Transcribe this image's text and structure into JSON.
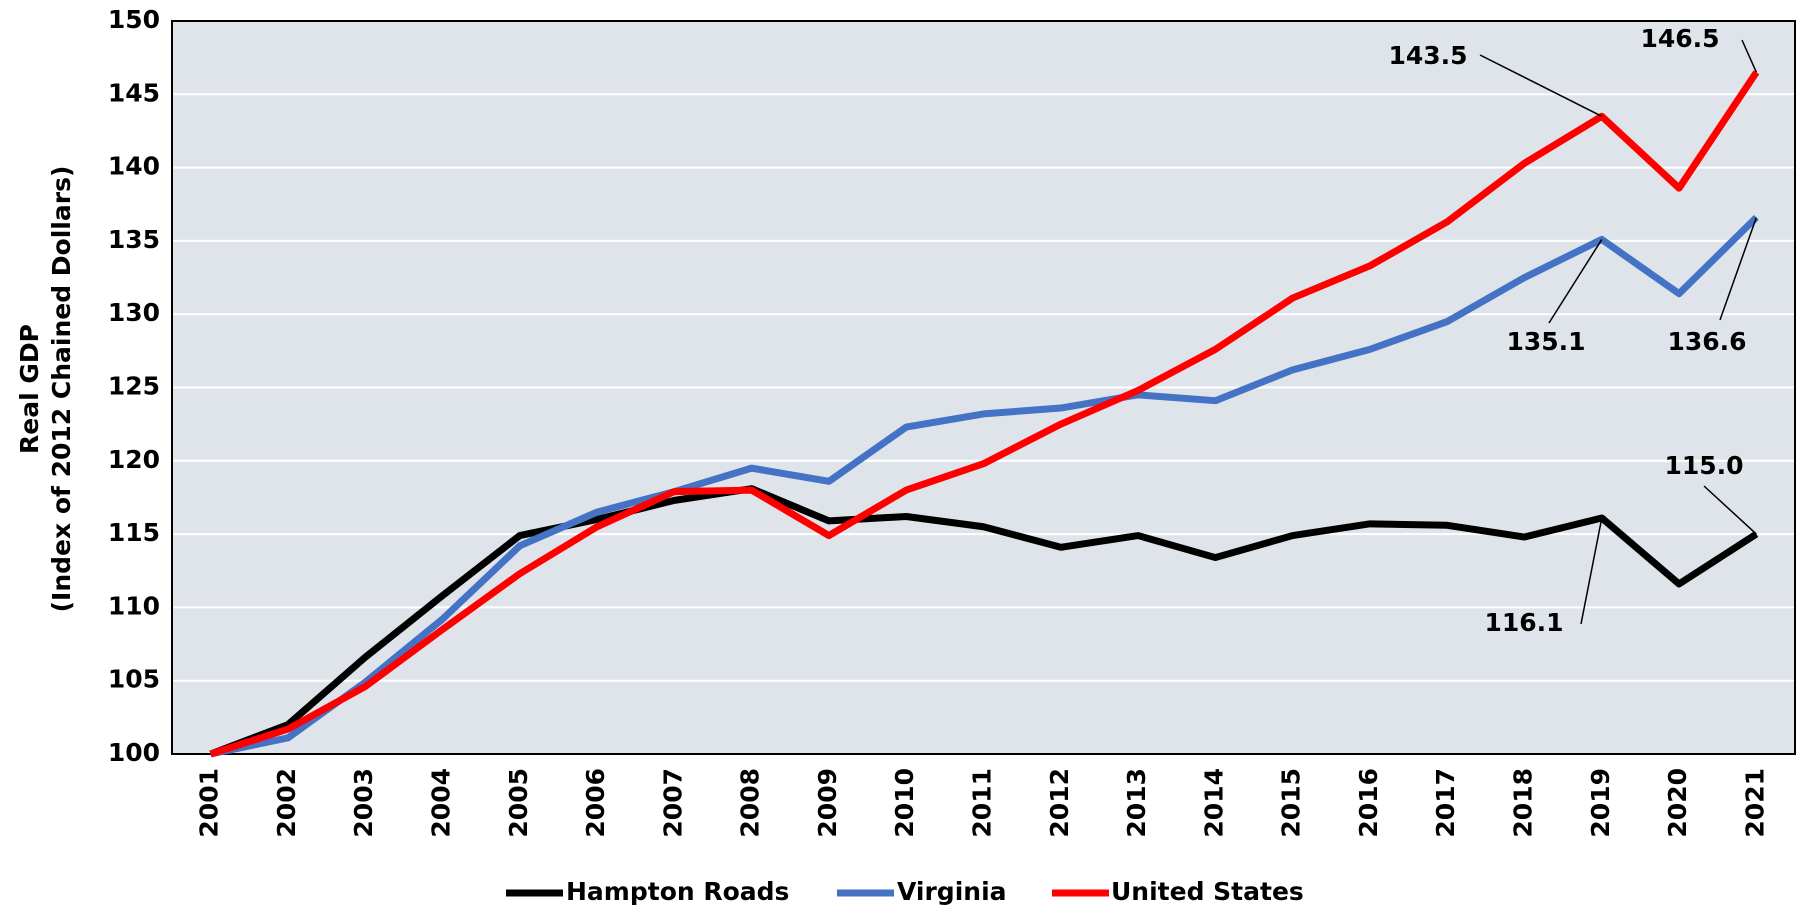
{
  "chart_data": {
    "type": "line",
    "y_label": [
      "Real GDP",
      "(Index of 2012 Chained Dollars)"
    ],
    "categories": [
      "2001",
      "2002",
      "2003",
      "2004",
      "2005",
      "2006",
      "2007",
      "2008",
      "2009",
      "2010",
      "2011",
      "2012",
      "2013",
      "2014",
      "2015",
      "2016",
      "2017",
      "2018",
      "2019",
      "2020",
      "2021"
    ],
    "series": [
      {
        "name": "Hampton Roads",
        "color": "#000000",
        "values": [
          100,
          102,
          106.6,
          110.8,
          114.9,
          116,
          117.3,
          118.1,
          115.9,
          116.2,
          115.5,
          114.1,
          114.9,
          113.4,
          114.9,
          115.7,
          115.6,
          114.8,
          116.1,
          111.6,
          115.0
        ]
      },
      {
        "name": "Virginia",
        "color": "#4472c4",
        "values": [
          100,
          101.1,
          104.9,
          109.2,
          114.2,
          116.5,
          117.9,
          119.5,
          118.6,
          122.3,
          123.2,
          123.6,
          124.5,
          124.1,
          126.2,
          127.6,
          129.5,
          132.5,
          135.1,
          131.4,
          136.6
        ]
      },
      {
        "name": "United States",
        "color": "#ff0000",
        "values": [
          100,
          101.7,
          104.6,
          108.5,
          112.3,
          115.5,
          117.9,
          118,
          114.9,
          118,
          119.8,
          122.5,
          124.8,
          127.6,
          131.1,
          133.3,
          136.3,
          140.3,
          143.5,
          138.6,
          146.5
        ]
      }
    ],
    "annotations": [
      "143.5",
      "146.5",
      "135.1",
      "136.6",
      "116.1",
      "115.0"
    ],
    "ylim": [
      100,
      150
    ],
    "yticks": [
      100,
      105,
      110,
      115,
      120,
      125,
      130,
      135,
      140,
      145,
      150
    ],
    "grid": true,
    "background": "#dee4ea",
    "legend": "bottom"
  }
}
